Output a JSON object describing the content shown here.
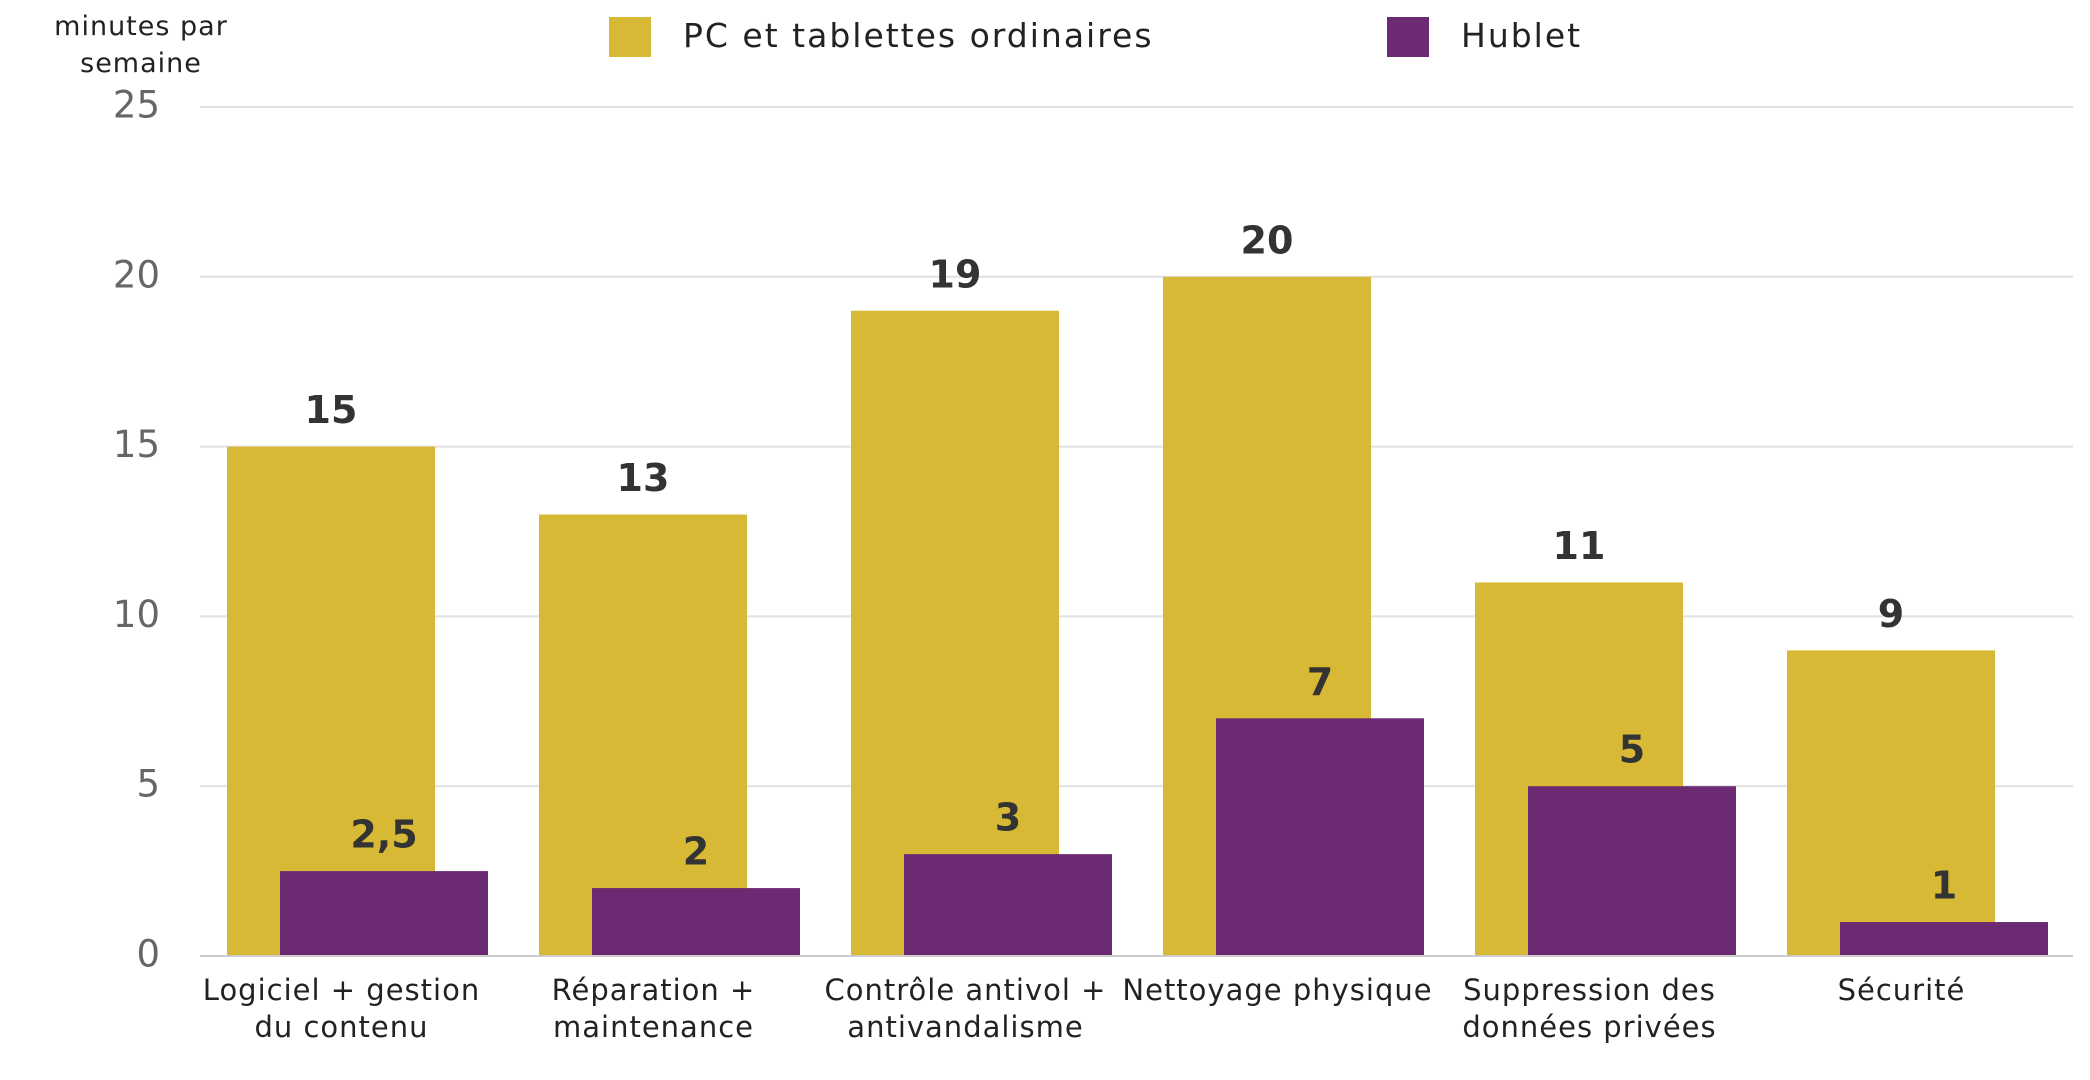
{
  "chart_data": {
    "type": "bar",
    "y_axis_label": "minutes par semaine",
    "categories": [
      "Logiciel + gestion du contenu",
      "Réparation + maintenance",
      "Contrôle antivol + antivandalisme",
      "Nettoyage physique",
      "Suppression des données privées",
      "Sécurité"
    ],
    "series": [
      {
        "name": "PC et tablettes ordinaires",
        "color": "#d8b936",
        "values": [
          15,
          13,
          19,
          20,
          11,
          9
        ]
      },
      {
        "name": "Hublet",
        "color": "#6b2a72",
        "values": [
          2.5,
          2,
          3,
          7,
          5,
          1
        ],
        "value_labels": [
          "2,5",
          "2",
          "3",
          "7",
          "5",
          "1"
        ]
      }
    ],
    "ylim": [
      0,
      25
    ],
    "yticks": [
      0,
      5,
      10,
      15,
      20,
      25
    ],
    "grid": true,
    "legend": "top"
  }
}
